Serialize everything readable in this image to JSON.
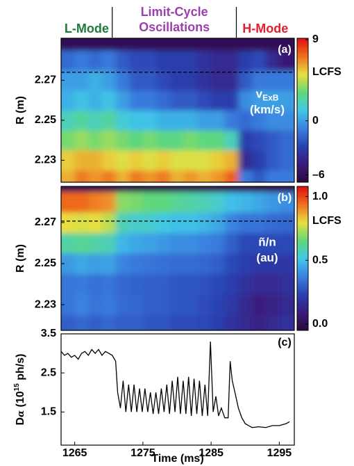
{
  "phases": [
    {
      "label": "L-Mode",
      "color": "#1f7a3a"
    },
    {
      "label": [
        "Limit-Cycle",
        "Oscillations"
      ],
      "color": "#9b3fb0"
    },
    {
      "label": "H-Mode",
      "color": "#e0202a"
    }
  ],
  "phase_boundaries": [
    1270.5,
    1288.7
  ],
  "chart_data": [
    {
      "type": "heatmap",
      "panel_label": "(a)",
      "ylabel": "R (m)",
      "quantity": [
        "v",
        "ExB"
      ],
      "units": "(km/s)",
      "lcfs": 2.274,
      "lcfs_label": "LCFS",
      "xlim": [
        1263,
        1297.2
      ],
      "ylim": [
        2.219,
        2.291
      ],
      "yticks": [
        2.27,
        2.25,
        2.23
      ],
      "clim": [
        -6.8,
        9.15
      ],
      "cticks": [
        9,
        0,
        {
          "value": -6,
          "label": "–6"
        }
      ],
      "colormap": [
        "#2a0a3a",
        "#3b1a7a",
        "#2a40b0",
        "#3a80e0",
        "#40c8e8",
        "#60d878",
        "#e8e040",
        "#f07020",
        "#e01010"
      ],
      "x": [
        1264,
        1266,
        1268,
        1270,
        1272,
        1274,
        1276,
        1278,
        1280,
        1282,
        1284,
        1286,
        1288,
        1290,
        1292,
        1294,
        1296
      ],
      "y": [
        2.22,
        2.23,
        2.24,
        2.25,
        2.26,
        2.27,
        2.28,
        2.29
      ],
      "z": [
        [
          6,
          7,
          6.5,
          7,
          6,
          7,
          6.5,
          7,
          6,
          6.5,
          6,
          6.5,
          7.5,
          -1,
          -2,
          -1,
          -1
        ],
        [
          5.5,
          6,
          6,
          5.5,
          5,
          5.5,
          5,
          5.5,
          5,
          5,
          5,
          5.5,
          6,
          -4,
          -3,
          -2,
          -1.5
        ],
        [
          3.5,
          4,
          3.5,
          4,
          3.5,
          3,
          3.5,
          3,
          3,
          3.5,
          3,
          3,
          2,
          -3,
          -2.5,
          -2,
          -1.5
        ],
        [
          2,
          2.5,
          2,
          2.5,
          1.5,
          1,
          1,
          0.5,
          0.5,
          0.5,
          0,
          0,
          -1,
          -1.5,
          -1,
          -0.5,
          -0.5
        ],
        [
          0.5,
          1,
          0.5,
          1,
          0,
          -1,
          -1,
          -1.5,
          -2,
          -2,
          -2.5,
          -3,
          -3,
          -0.5,
          0,
          0,
          0
        ],
        [
          0,
          0,
          0.5,
          0,
          -1,
          -2,
          -2,
          -2.5,
          -3,
          -3,
          -3.5,
          -4,
          -4,
          -2,
          -1,
          -1,
          -1
        ],
        [
          -1.5,
          -1,
          -1.5,
          -1,
          -2,
          -2.5,
          -2.5,
          -3,
          -3,
          -3,
          -3.5,
          -4,
          -4,
          -3,
          -2.5,
          -4,
          -5
        ],
        [
          -6,
          -6,
          -6,
          -6,
          -6,
          -6,
          -6,
          -6,
          -6,
          -6,
          -6,
          -6,
          -6,
          -6,
          -6,
          -6,
          -6
        ]
      ]
    },
    {
      "type": "heatmap",
      "panel_label": "(b)",
      "ylabel": "R (m)",
      "quantity": [
        "ñ/n"
      ],
      "units": "(au)",
      "lcfs": 2.2707,
      "lcfs_label": "LCFS",
      "xlim": [
        1263,
        1297.2
      ],
      "ylim": [
        2.2175,
        2.2876
      ],
      "yticks": [
        2.27,
        2.25,
        2.23
      ],
      "clim": [
        -0.05,
        1.08
      ],
      "cticks": [
        {
          "value": 1,
          "label": "1.0"
        },
        0.5,
        {
          "value": 0,
          "label": "0.0"
        }
      ],
      "colormap": [
        "#2a0a3a",
        "#3b1a7a",
        "#2a40b0",
        "#3a80e0",
        "#40c8e8",
        "#60d878",
        "#e8e040",
        "#f07020",
        "#e01010"
      ],
      "x": [
        1264,
        1266,
        1268,
        1270,
        1272,
        1274,
        1276,
        1278,
        1280,
        1282,
        1284,
        1286,
        1288,
        1290,
        1292,
        1294,
        1296
      ],
      "y": [
        2.22,
        2.23,
        2.24,
        2.25,
        2.26,
        2.27,
        2.28,
        2.29
      ],
      "z": [
        [
          0.3,
          0.32,
          0.3,
          0.32,
          0.3,
          0.3,
          0.28,
          0.28,
          0.26,
          0.26,
          0.25,
          0.22,
          0.18,
          0.15,
          0.12,
          0.15,
          0.18
        ],
        [
          0.35,
          0.38,
          0.35,
          0.36,
          0.33,
          0.32,
          0.3,
          0.3,
          0.28,
          0.28,
          0.26,
          0.24,
          0.2,
          0.15,
          0.1,
          0.12,
          0.15
        ],
        [
          0.35,
          0.36,
          0.34,
          0.35,
          0.32,
          0.31,
          0.3,
          0.3,
          0.28,
          0.28,
          0.27,
          0.25,
          0.22,
          0.18,
          0.15,
          0.15,
          0.18
        ],
        [
          0.42,
          0.45,
          0.43,
          0.44,
          0.38,
          0.36,
          0.35,
          0.34,
          0.33,
          0.33,
          0.32,
          0.3,
          0.25,
          0.22,
          0.2,
          0.2,
          0.2
        ],
        [
          0.6,
          0.62,
          0.6,
          0.58,
          0.48,
          0.45,
          0.44,
          0.42,
          0.4,
          0.4,
          0.38,
          0.36,
          0.3,
          0.25,
          0.25,
          0.25,
          0.25
        ],
        [
          0.8,
          0.78,
          0.8,
          0.75,
          0.58,
          0.55,
          0.55,
          0.52,
          0.5,
          0.5,
          0.48,
          0.45,
          0.38,
          0.35,
          0.35,
          0.33,
          0.32
        ],
        [
          0.95,
          0.95,
          0.92,
          0.9,
          0.7,
          0.68,
          0.65,
          0.65,
          0.62,
          0.6,
          0.58,
          0.55,
          0.5,
          0.48,
          0.45,
          0.42,
          0.4
        ],
        [
          0,
          0,
          0,
          0,
          0,
          0,
          0,
          0,
          0,
          0,
          0,
          0,
          0,
          0,
          0,
          0,
          0
        ]
      ]
    },
    {
      "type": "line",
      "panel_label": "(c)",
      "ylabel": [
        "D",
        "α",
        " (10",
        "15",
        " ph/s)"
      ],
      "xlabel": "Time (ms)",
      "xlim": [
        1263,
        1297.2
      ],
      "ylim": [
        0.65,
        3.5
      ],
      "yticks": [
        3.5,
        2.5,
        1.5
      ],
      "xticks": [
        1265,
        1275,
        1285,
        1295
      ],
      "color": "#000000",
      "x": [
        1263,
        1263.5,
        1264,
        1264.5,
        1265,
        1265.5,
        1266,
        1266.5,
        1267,
        1267.5,
        1268,
        1268.5,
        1269,
        1269.5,
        1270,
        1270.5,
        1271,
        1271.3,
        1271.7,
        1272.1,
        1272.5,
        1272.9,
        1273.3,
        1273.7,
        1274.1,
        1274.5,
        1274.9,
        1275.3,
        1275.7,
        1276.1,
        1276.5,
        1276.9,
        1277.3,
        1277.7,
        1278.1,
        1278.5,
        1278.9,
        1279.3,
        1279.7,
        1280.1,
        1280.5,
        1280.9,
        1281.3,
        1281.7,
        1282.1,
        1282.5,
        1282.9,
        1283.3,
        1283.7,
        1284.1,
        1284.5,
        1284.9,
        1285.3,
        1285.7,
        1286.1,
        1286.5,
        1287,
        1287.5,
        1287.8,
        1288.1,
        1288.5,
        1289,
        1289.5,
        1290,
        1290.5,
        1291,
        1292,
        1293,
        1294,
        1295,
        1296,
        1296.5
      ],
      "values": [
        3.05,
        2.95,
        3.0,
        2.9,
        2.95,
        2.85,
        3.0,
        3.05,
        2.95,
        3.1,
        3.0,
        3.1,
        2.95,
        3.05,
        3.0,
        2.95,
        2.8,
        2.0,
        1.6,
        2.3,
        1.5,
        2.2,
        1.5,
        2.2,
        1.5,
        2.1,
        1.5,
        2.1,
        1.5,
        2.0,
        1.45,
        2.0,
        1.45,
        2.1,
        1.5,
        2.2,
        1.45,
        2.3,
        1.5,
        2.4,
        1.45,
        2.3,
        1.45,
        2.4,
        1.4,
        2.35,
        1.45,
        2.3,
        1.4,
        2.2,
        1.4,
        3.3,
        1.5,
        1.9,
        1.4,
        1.6,
        1.35,
        1.35,
        2.8,
        2.3,
        2.0,
        1.6,
        1.35,
        1.2,
        1.15,
        1.1,
        1.12,
        1.1,
        1.15,
        1.15,
        1.2,
        1.25
      ]
    }
  ]
}
